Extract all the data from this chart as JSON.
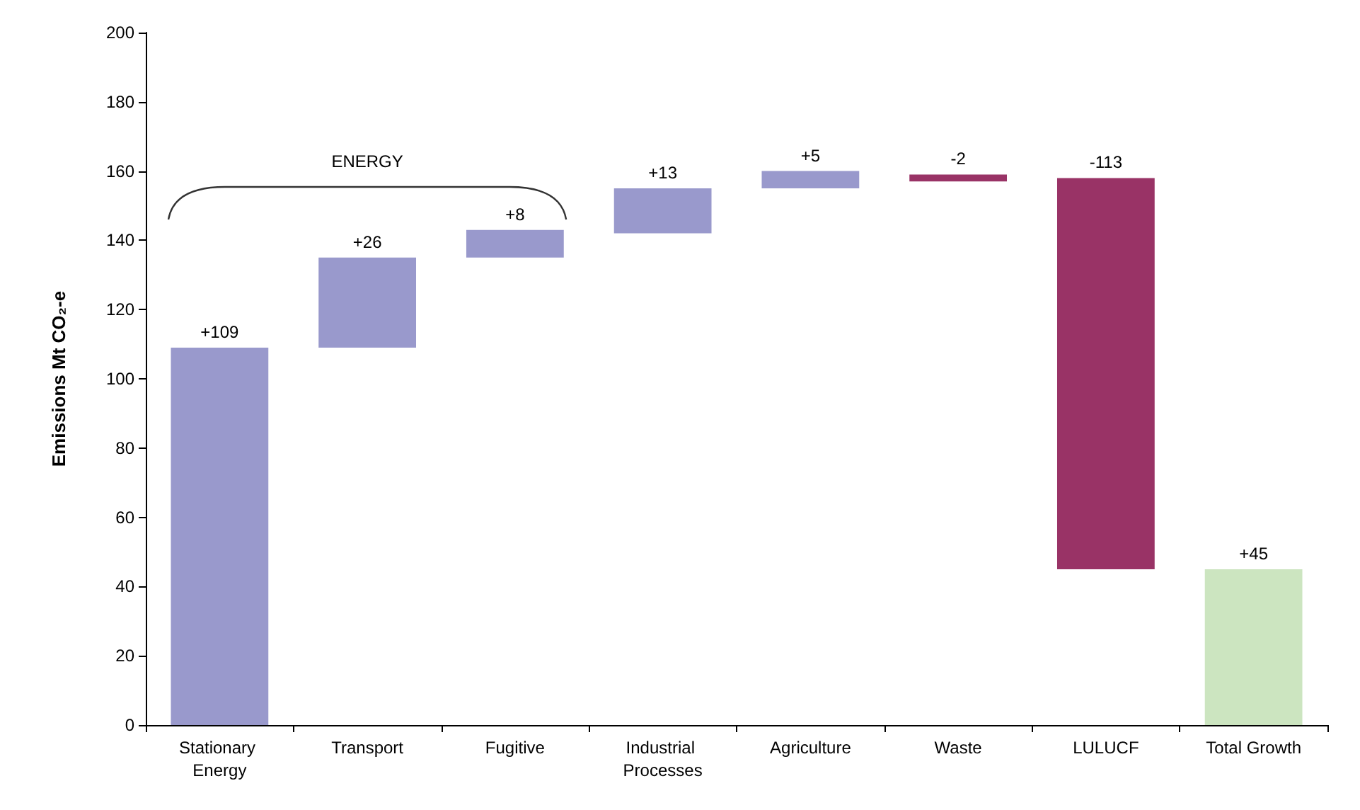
{
  "chart_data": {
    "type": "bar",
    "ylabel": "Emissions Mt CO₂-e",
    "categories": [
      "Stationary Energy",
      "Transport",
      "Fugitive",
      "Industrial Processes",
      "Agriculture",
      "Waste",
      "LULUCF",
      "Total Growth"
    ],
    "base": [
      0,
      109,
      135,
      142,
      155,
      159,
      158,
      0
    ],
    "values": [
      109,
      26,
      8,
      13,
      5,
      -2,
      -113,
      45
    ],
    "value_labels": [
      "+109",
      "+26",
      "+8",
      "+13",
      "+5",
      "-2",
      "-113",
      "+45"
    ],
    "colors": [
      "#9999cc",
      "#9999cc",
      "#9999cc",
      "#9999cc",
      "#9999cc",
      "#993366",
      "#993366",
      "#cce5c0"
    ],
    "annotations": [
      "ENERGY"
    ],
    "ylim": [
      0,
      200
    ],
    "yticks": [
      0,
      20,
      40,
      60,
      80,
      100,
      120,
      140,
      160,
      180,
      200
    ],
    "grid": false
  }
}
